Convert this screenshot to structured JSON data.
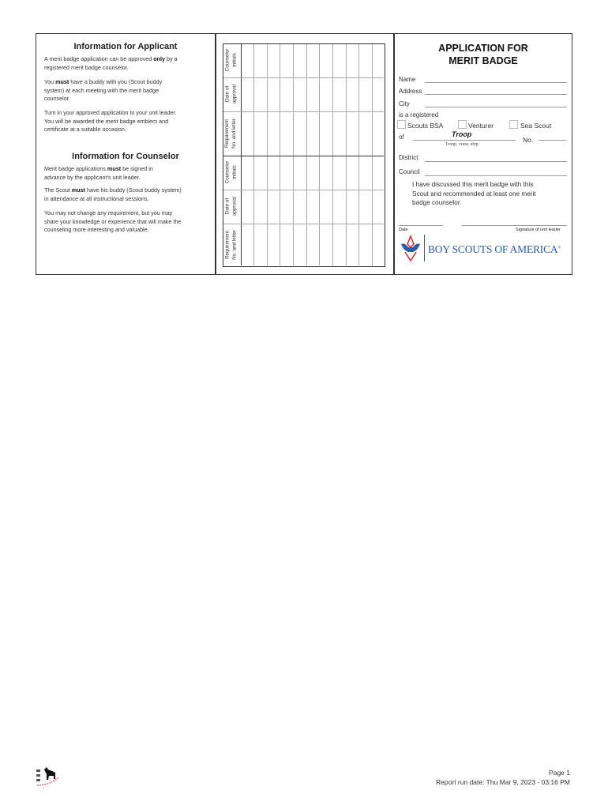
{
  "applicant": {
    "heading": "Information for Applicant",
    "p1_a": "A merit badge application can be approved ",
    "p1_b": "only",
    "p1_c": " by a registered merit badge counselor.",
    "p2_a": "You ",
    "p2_b": "must",
    "p2_c": " have a buddy with you (Scout buddy system) at each meeting with the merit badge counselor.",
    "p3": "Turn in your approved application to your unit leader. You will be awarded the merit badge emblem and certificate at a suitable occasion."
  },
  "counselor": {
    "heading": "Information for Counselor",
    "p1_a": "Merit badge applications ",
    "p1_b": "must",
    "p1_c": " be signed in advance by the applicant's unit leader.",
    "p2_a": "The Scout ",
    "p2_b": "must",
    "p2_c": " have his buddy (Scout buddy system) in attendance at all instructional sessions.",
    "p3": "You may not change any requirement, but you may share your knowledge or experience that will make the counseling more interesting and valuable."
  },
  "grid": {
    "labels": [
      [
        "Counselor",
        "initials"
      ],
      [
        "Date of",
        "approval"
      ],
      [
        "Requirement",
        "No. and letter"
      ],
      [
        "Counselor",
        "initials"
      ],
      [
        "Date of",
        "approval"
      ],
      [
        "Requirement",
        "No. and letter"
      ]
    ]
  },
  "form": {
    "title1": "APPLICATION FOR",
    "title2": "MERIT BADGE",
    "name": "Name",
    "address": "Address",
    "city": "City",
    "registered": "is a registered",
    "opt1": "Scouts BSA",
    "opt2": "Venturer",
    "opt3": "Sea Scout",
    "of": "of",
    "unit_value": "Troop",
    "unit_caption": "Troop, crew, ship",
    "no": "No.",
    "district": "District",
    "council": "Council",
    "statement": "I have discussed this merit badge with this Scout and recommended at least one merit badge counselor.",
    "date": "Date",
    "signature": "Signature of unit leader",
    "logo_text": "BOY SCOUTS OF AMERICA",
    "logo_mark": "®"
  },
  "footer": {
    "page": "Page 1",
    "run_date": "Report run date: Thu Mar 9, 2023 - 03:16 PM"
  },
  "colors": {
    "logo_blue": "#2a5da8",
    "logo_red": "#d8242f"
  }
}
